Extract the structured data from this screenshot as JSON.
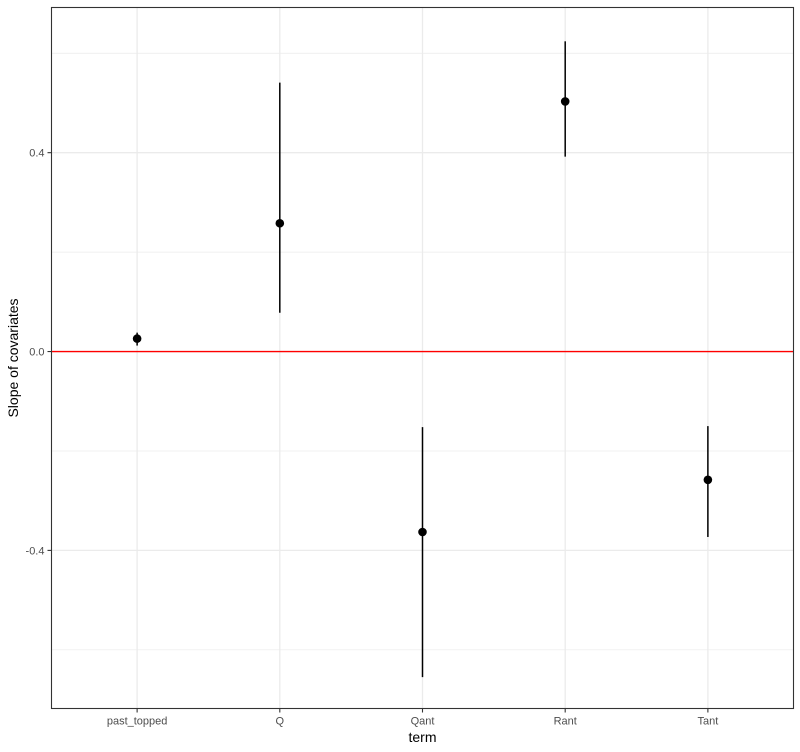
{
  "chart_data": {
    "type": "scatter",
    "subtype": "point-range",
    "title": "",
    "xlabel": "term",
    "ylabel": "Slope of covariates",
    "categories": [
      "past_topped",
      "Q",
      "Qant",
      "Rant",
      "Tant"
    ],
    "estimates": [
      0.026,
      0.258,
      -0.363,
      0.503,
      -0.258
    ],
    "lower": [
      0.012,
      0.078,
      -0.655,
      0.392,
      -0.373
    ],
    "upper": [
      0.038,
      0.541,
      -0.152,
      0.624,
      -0.15
    ],
    "ylim": [
      -0.718,
      0.692
    ],
    "y_ticks": [
      -0.4,
      0.0,
      0.4
    ],
    "y_tick_labels": [
      "-0.4",
      "0.0",
      "0.4"
    ],
    "y_minor_ticks": [
      -0.6,
      -0.2,
      0.2,
      0.6
    ],
    "reference_line": {
      "y": 0,
      "color": "#ff0000"
    },
    "grid": true,
    "theme": "bw",
    "colors": {
      "points": "#000000",
      "panel_border": "#333333",
      "grid": "#ebebeb"
    }
  }
}
